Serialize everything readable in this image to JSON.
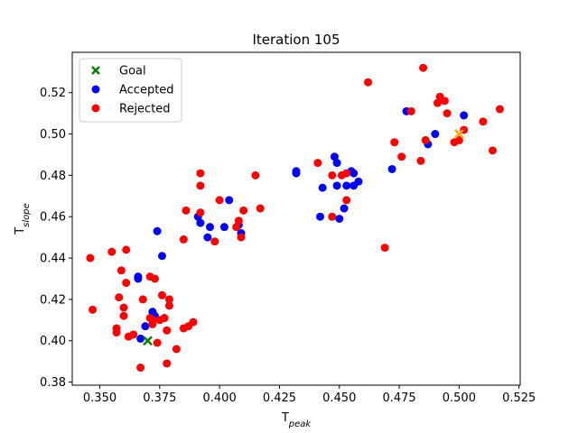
{
  "chart_data": {
    "type": "scatter",
    "title": "Iteration 105",
    "xlabel": {
      "main": "T",
      "sub": "peak"
    },
    "ylabel": {
      "main": "T",
      "sub": "slope"
    },
    "xlim": [
      0.3385,
      0.5255
    ],
    "ylim": [
      0.3785,
      0.5395
    ],
    "xticks": [
      0.35,
      0.375,
      0.4,
      0.425,
      0.45,
      0.475,
      0.5,
      0.525
    ],
    "xtick_labels": [
      "0.350",
      "0.375",
      "0.400",
      "0.425",
      "0.450",
      "0.475",
      "0.500",
      "0.525"
    ],
    "yticks": [
      0.38,
      0.4,
      0.42,
      0.44,
      0.46,
      0.48,
      0.5,
      0.52
    ],
    "ytick_labels": [
      "0.38",
      "0.40",
      "0.42",
      "0.44",
      "0.46",
      "0.48",
      "0.50",
      "0.52"
    ],
    "grid": false,
    "legend_position": "top-left",
    "colors": {
      "goal": "#008000",
      "accepted": "#0000ff",
      "rejected": "#ff0000",
      "current": "#ffa500"
    },
    "series": [
      {
        "name": "Goal",
        "marker": "x",
        "color": "#008000",
        "points": [
          [
            0.37,
            0.4
          ],
          [
            0.5,
            0.5
          ]
        ]
      },
      {
        "name": "Accepted",
        "marker": "o",
        "color": "#0000ff",
        "points": [
          [
            0.366,
            0.431
          ],
          [
            0.366,
            0.43
          ],
          [
            0.367,
            0.401
          ],
          [
            0.369,
            0.407
          ],
          [
            0.372,
            0.414
          ],
          [
            0.373,
            0.412
          ],
          [
            0.374,
            0.453
          ],
          [
            0.376,
            0.441
          ],
          [
            0.392,
            0.457
          ],
          [
            0.391,
            0.46
          ],
          [
            0.395,
            0.45
          ],
          [
            0.396,
            0.455
          ],
          [
            0.402,
            0.455
          ],
          [
            0.404,
            0.468
          ],
          [
            0.408,
            0.456
          ],
          [
            0.409,
            0.452
          ],
          [
            0.432,
            0.482
          ],
          [
            0.432,
            0.481
          ],
          [
            0.442,
            0.46
          ],
          [
            0.443,
            0.474
          ],
          [
            0.448,
            0.489
          ],
          [
            0.449,
            0.475
          ],
          [
            0.449,
            0.486
          ],
          [
            0.45,
            0.459
          ],
          [
            0.452,
            0.464
          ],
          [
            0.453,
            0.475
          ],
          [
            0.455,
            0.482
          ],
          [
            0.456,
            0.481
          ],
          [
            0.456,
            0.475
          ],
          [
            0.458,
            0.477
          ],
          [
            0.472,
            0.483
          ],
          [
            0.478,
            0.511
          ],
          [
            0.487,
            0.495
          ],
          [
            0.49,
            0.5
          ],
          [
            0.502,
            0.509
          ]
        ]
      },
      {
        "name": "Rejected",
        "marker": "o",
        "color": "#ff0000",
        "points": [
          [
            0.346,
            0.44
          ],
          [
            0.347,
            0.415
          ],
          [
            0.355,
            0.443
          ],
          [
            0.357,
            0.406
          ],
          [
            0.357,
            0.404
          ],
          [
            0.358,
            0.421
          ],
          [
            0.359,
            0.434
          ],
          [
            0.36,
            0.416
          ],
          [
            0.36,
            0.412
          ],
          [
            0.361,
            0.428
          ],
          [
            0.361,
            0.444
          ],
          [
            0.362,
            0.402
          ],
          [
            0.364,
            0.403
          ],
          [
            0.367,
            0.387
          ],
          [
            0.368,
            0.42
          ],
          [
            0.371,
            0.411
          ],
          [
            0.371,
            0.431
          ],
          [
            0.372,
            0.408
          ],
          [
            0.372,
            0.41
          ],
          [
            0.373,
            0.43
          ],
          [
            0.374,
            0.399
          ],
          [
            0.375,
            0.41
          ],
          [
            0.376,
            0.422
          ],
          [
            0.377,
            0.411
          ],
          [
            0.378,
            0.389
          ],
          [
            0.378,
            0.405
          ],
          [
            0.379,
            0.417
          ],
          [
            0.379,
            0.42
          ],
          [
            0.382,
            0.396
          ],
          [
            0.385,
            0.449
          ],
          [
            0.385,
            0.406
          ],
          [
            0.386,
            0.463
          ],
          [
            0.387,
            0.407
          ],
          [
            0.389,
            0.409
          ],
          [
            0.392,
            0.481
          ],
          [
            0.392,
            0.475
          ],
          [
            0.392,
            0.462
          ],
          [
            0.398,
            0.448
          ],
          [
            0.4,
            0.468
          ],
          [
            0.407,
            0.455
          ],
          [
            0.408,
            0.458
          ],
          [
            0.409,
            0.45
          ],
          [
            0.41,
            0.463
          ],
          [
            0.415,
            0.48
          ],
          [
            0.417,
            0.464
          ],
          [
            0.441,
            0.486
          ],
          [
            0.447,
            0.46
          ],
          [
            0.447,
            0.48
          ],
          [
            0.451,
            0.48
          ],
          [
            0.453,
            0.468
          ],
          [
            0.453,
            0.481
          ],
          [
            0.462,
            0.525
          ],
          [
            0.469,
            0.445
          ],
          [
            0.473,
            0.496
          ],
          [
            0.476,
            0.489
          ],
          [
            0.48,
            0.511
          ],
          [
            0.484,
            0.487
          ],
          [
            0.485,
            0.532
          ],
          [
            0.486,
            0.497
          ],
          [
            0.491,
            0.515
          ],
          [
            0.492,
            0.518
          ],
          [
            0.494,
            0.516
          ],
          [
            0.495,
            0.51
          ],
          [
            0.498,
            0.496
          ],
          [
            0.5,
            0.497
          ],
          [
            0.502,
            0.502
          ],
          [
            0.51,
            0.506
          ],
          [
            0.514,
            0.492
          ],
          [
            0.517,
            0.512
          ]
        ]
      }
    ]
  }
}
